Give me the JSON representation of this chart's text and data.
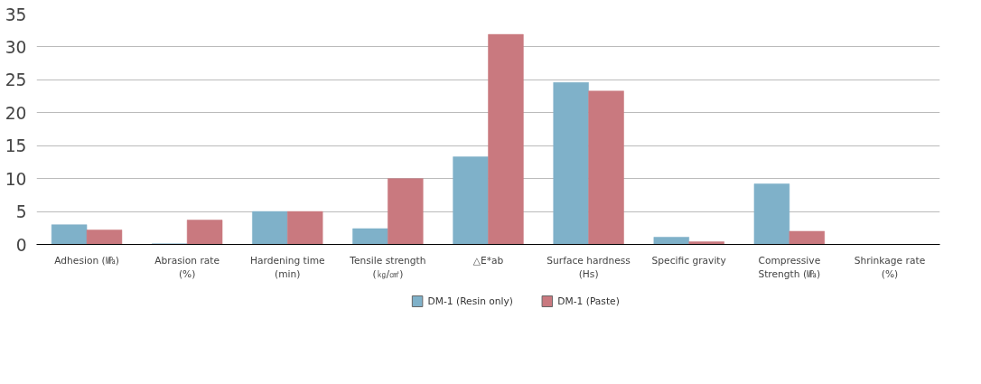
{
  "chart_data": {
    "type": "bar",
    "categories": [
      "Adhesion (㎫)",
      "Abrasion rate (%)",
      "Hardening time (min)",
      "Tensile strength (㎏/㎠)",
      "△E*ab",
      "Surface hardness (Hs)",
      "Specific gravity",
      "Compressive Strength (㎫)",
      "Shrinkage rate (%)"
    ],
    "series": [
      {
        "name": "DM-1 (Resin only)",
        "color": "#7fb1c9",
        "values": [
          3.0,
          0.1,
          5.0,
          2.4,
          13.3,
          24.6,
          1.1,
          9.2,
          0
        ]
      },
      {
        "name": "DM-1 (Paste)",
        "color": "#c9797f",
        "values": [
          2.2,
          3.7,
          5.0,
          10.0,
          31.9,
          23.3,
          0.4,
          2.0,
          0
        ]
      }
    ],
    "ylim": [
      0,
      35
    ],
    "yticks": [
      0,
      5,
      10,
      15,
      20,
      25,
      30,
      35
    ],
    "grid": "y",
    "legend": "bottom"
  }
}
